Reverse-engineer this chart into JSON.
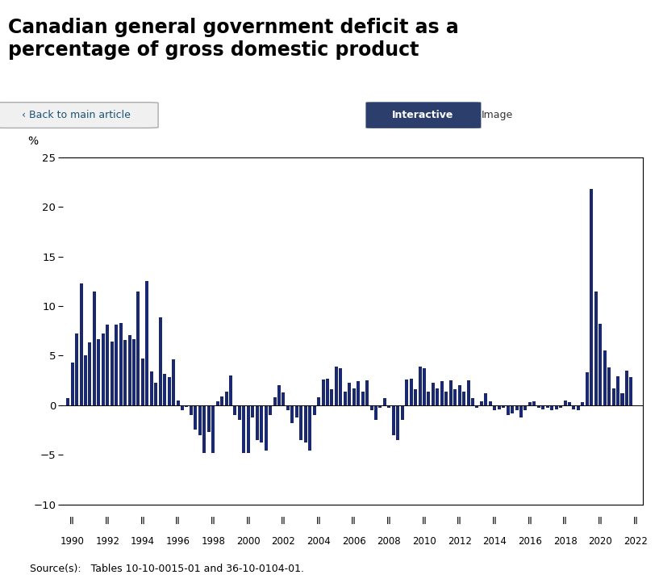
{
  "title_line1": "Canadian general government deficit as a",
  "title_line2": "percentage of gross domestic product",
  "ylabel": "%",
  "bar_color": "#1a2870",
  "page_background": "#f0f0f0",
  "panel_background": "#e8e8e8",
  "plot_background": "#ffffff",
  "ylim": [
    -10,
    25
  ],
  "yticks": [
    -10,
    -5,
    0,
    5,
    10,
    15,
    20,
    25
  ],
  "years": [
    1990,
    1992,
    1994,
    1996,
    1998,
    2000,
    2002,
    2004,
    2006,
    2008,
    2010,
    2012,
    2014,
    2016,
    2018,
    2020,
    2022
  ],
  "quarterly_data": [
    [
      1990.0,
      0.7
    ],
    [
      1990.25,
      4.3
    ],
    [
      1990.5,
      7.2
    ],
    [
      1990.75,
      12.3
    ],
    [
      1991.0,
      5.0
    ],
    [
      1991.25,
      6.3
    ],
    [
      1991.5,
      11.5
    ],
    [
      1991.75,
      6.7
    ],
    [
      1992.0,
      7.2
    ],
    [
      1992.25,
      8.1
    ],
    [
      1992.5,
      6.4
    ],
    [
      1992.75,
      8.1
    ],
    [
      1993.0,
      8.3
    ],
    [
      1993.25,
      6.6
    ],
    [
      1993.5,
      7.1
    ],
    [
      1993.75,
      6.7
    ],
    [
      1994.0,
      11.5
    ],
    [
      1994.25,
      4.7
    ],
    [
      1994.5,
      12.5
    ],
    [
      1994.75,
      3.4
    ],
    [
      1995.0,
      2.3
    ],
    [
      1995.25,
      8.9
    ],
    [
      1995.5,
      3.2
    ],
    [
      1995.75,
      2.8
    ],
    [
      1996.0,
      4.6
    ],
    [
      1996.25,
      0.5
    ],
    [
      1996.5,
      -0.5
    ],
    [
      1996.75,
      -0.2
    ],
    [
      1997.0,
      -1.0
    ],
    [
      1997.25,
      -2.5
    ],
    [
      1997.5,
      -3.0
    ],
    [
      1997.75,
      -4.8
    ],
    [
      1998.0,
      -2.7
    ],
    [
      1998.25,
      -4.8
    ],
    [
      1998.5,
      0.4
    ],
    [
      1998.75,
      0.9
    ],
    [
      1999.0,
      1.4
    ],
    [
      1999.25,
      3.0
    ],
    [
      1999.5,
      -1.0
    ],
    [
      1999.75,
      -1.5
    ],
    [
      2000.0,
      -4.8
    ],
    [
      2000.25,
      -4.8
    ],
    [
      2000.5,
      -1.2
    ],
    [
      2000.75,
      -3.5
    ],
    [
      2001.0,
      -3.8
    ],
    [
      2001.25,
      -4.6
    ],
    [
      2001.5,
      -1.0
    ],
    [
      2001.75,
      0.8
    ],
    [
      2002.0,
      2.0
    ],
    [
      2002.25,
      1.3
    ],
    [
      2002.5,
      -0.5
    ],
    [
      2002.75,
      -1.8
    ],
    [
      2003.0,
      -1.2
    ],
    [
      2003.25,
      -3.5
    ],
    [
      2003.5,
      -3.8
    ],
    [
      2003.75,
      -4.6
    ],
    [
      2004.0,
      -1.0
    ],
    [
      2004.25,
      0.8
    ],
    [
      2004.5,
      2.6
    ],
    [
      2004.75,
      2.7
    ],
    [
      2005.0,
      1.6
    ],
    [
      2005.25,
      3.9
    ],
    [
      2005.5,
      3.7
    ],
    [
      2005.75,
      1.4
    ],
    [
      2006.0,
      2.3
    ],
    [
      2006.25,
      1.7
    ],
    [
      2006.5,
      2.4
    ],
    [
      2006.75,
      1.4
    ],
    [
      2007.0,
      2.5
    ],
    [
      2007.25,
      -0.5
    ],
    [
      2007.5,
      -1.5
    ],
    [
      2007.75,
      -0.3
    ],
    [
      2008.0,
      0.7
    ],
    [
      2008.25,
      -0.3
    ],
    [
      2008.5,
      -3.0
    ],
    [
      2008.75,
      -3.5
    ],
    [
      2009.0,
      -1.5
    ],
    [
      2009.25,
      2.6
    ],
    [
      2009.5,
      2.7
    ],
    [
      2009.75,
      1.6
    ],
    [
      2010.0,
      3.9
    ],
    [
      2010.25,
      3.7
    ],
    [
      2010.5,
      1.4
    ],
    [
      2010.75,
      2.3
    ],
    [
      2011.0,
      1.7
    ],
    [
      2011.25,
      2.4
    ],
    [
      2011.5,
      1.4
    ],
    [
      2011.75,
      2.5
    ],
    [
      2012.0,
      1.6
    ],
    [
      2012.25,
      2.0
    ],
    [
      2012.5,
      1.4
    ],
    [
      2012.75,
      2.5
    ],
    [
      2013.0,
      0.7
    ],
    [
      2013.25,
      -0.3
    ],
    [
      2013.5,
      0.4
    ],
    [
      2013.75,
      1.2
    ],
    [
      2014.0,
      0.4
    ],
    [
      2014.25,
      -0.5
    ],
    [
      2014.5,
      -0.4
    ],
    [
      2014.75,
      -0.3
    ],
    [
      2015.0,
      -1.0
    ],
    [
      2015.25,
      -0.8
    ],
    [
      2015.5,
      -0.5
    ],
    [
      2015.75,
      -1.2
    ],
    [
      2016.0,
      -0.5
    ],
    [
      2016.25,
      0.3
    ],
    [
      2016.5,
      0.4
    ],
    [
      2016.75,
      -0.3
    ],
    [
      2017.0,
      -0.4
    ],
    [
      2017.25,
      -0.3
    ],
    [
      2017.5,
      -0.5
    ],
    [
      2017.75,
      -0.4
    ],
    [
      2018.0,
      -0.3
    ],
    [
      2018.25,
      0.5
    ],
    [
      2018.5,
      0.3
    ],
    [
      2018.75,
      -0.4
    ],
    [
      2019.0,
      -0.5
    ],
    [
      2019.25,
      0.3
    ],
    [
      2019.5,
      3.3
    ],
    [
      2019.75,
      21.8
    ],
    [
      2020.0,
      11.5
    ],
    [
      2020.25,
      8.2
    ],
    [
      2020.5,
      5.5
    ],
    [
      2020.75,
      3.8
    ],
    [
      2021.0,
      1.7
    ],
    [
      2021.25,
      2.9
    ],
    [
      2021.5,
      1.2
    ],
    [
      2021.75,
      3.5
    ],
    [
      2022.0,
      2.8
    ]
  ],
  "source_text": "Source(s):   Tables 10-10-0015-01 and 36-10-0104-01.",
  "nav_color": "#2c3e6b",
  "nav_text_color": "#ffffff",
  "back_btn_color": "#e8e8e8",
  "back_btn_text": "‹ Back to main article",
  "interactive_text": "Interactive",
  "image_text": "Image"
}
